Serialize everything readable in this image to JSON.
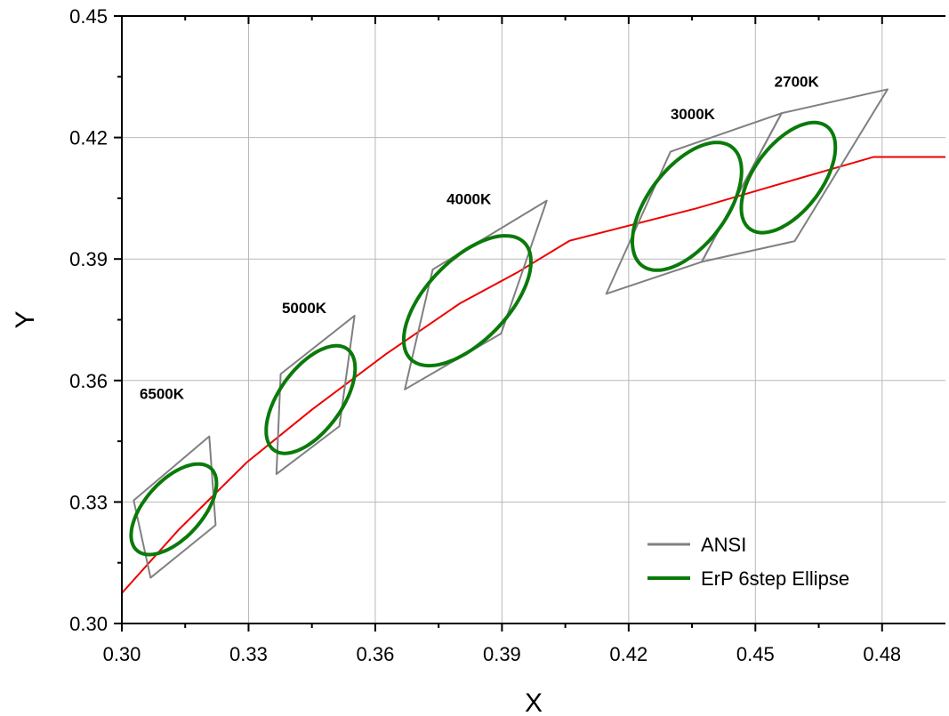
{
  "chart_data": {
    "type": "line",
    "xlabel": "X",
    "ylabel": "Y",
    "xlim": [
      0.3,
      0.495
    ],
    "ylim": [
      0.3,
      0.45
    ],
    "x_ticks": [
      "0.30",
      "0.33",
      "0.36",
      "0.39",
      "0.42",
      "0.45",
      "0.48"
    ],
    "y_ticks": [
      "0.30",
      "0.33",
      "0.36",
      "0.39",
      "0.42",
      "0.45"
    ],
    "x_tick_values": [
      0.3,
      0.33,
      0.36,
      0.39,
      0.42,
      0.45,
      0.48
    ],
    "y_tick_values": [
      0.3,
      0.33,
      0.36,
      0.39,
      0.42,
      0.45
    ],
    "grid": true,
    "legend_position": "bottom-right",
    "colors": {
      "ansi": "#808080",
      "ellipse": "#0a7a0a",
      "locus": "#ee0000",
      "grid": "#b8b8b8"
    },
    "legend": [
      {
        "label": "ANSI",
        "color": "#808080"
      },
      {
        "label": "ErP 6step Ellipse",
        "color": "#0a7a0a"
      }
    ],
    "planckian_locus": [
      [
        0.3,
        0.3075
      ],
      [
        0.3135,
        0.3232
      ],
      [
        0.3296,
        0.3398
      ],
      [
        0.345,
        0.3528
      ],
      [
        0.3625,
        0.3665
      ],
      [
        0.38,
        0.379
      ],
      [
        0.3935,
        0.3866
      ],
      [
        0.406,
        0.3945
      ],
      [
        0.436,
        0.4025
      ],
      [
        0.458,
        0.4092
      ],
      [
        0.478,
        0.4152
      ],
      [
        0.495,
        0.4152
      ]
    ],
    "ansi_quads": [
      {
        "cct": "6500K",
        "points": [
          [
            0.3028,
            0.3304
          ],
          [
            0.3207,
            0.3462
          ],
          [
            0.3222,
            0.3243
          ],
          [
            0.3068,
            0.3113
          ]
        ]
      },
      {
        "cct": "5000K",
        "points": [
          [
            0.3376,
            0.3616
          ],
          [
            0.3551,
            0.376
          ],
          [
            0.3515,
            0.3487
          ],
          [
            0.3366,
            0.3369
          ]
        ]
      },
      {
        "cct": "4000K",
        "points": [
          [
            0.3736,
            0.3874
          ],
          [
            0.4006,
            0.4044
          ],
          [
            0.3898,
            0.3716
          ],
          [
            0.367,
            0.3578
          ]
        ]
      },
      {
        "cct": "3000K",
        "points": [
          [
            0.4147,
            0.3814
          ],
          [
            0.4299,
            0.4165
          ],
          [
            0.4562,
            0.426
          ],
          [
            0.4373,
            0.3893
          ]
        ]
      },
      {
        "cct": "2700K",
        "points": [
          [
            0.4373,
            0.3893
          ],
          [
            0.4562,
            0.426
          ],
          [
            0.4813,
            0.4319
          ],
          [
            0.4593,
            0.3944
          ]
        ]
      }
    ],
    "ellipses": [
      {
        "cct": "6500K",
        "center": [
          0.3123,
          0.3282
        ],
        "a": 0.0134,
        "b": 0.0069,
        "angle_deg": 50
      },
      {
        "cct": "5000K",
        "center": [
          0.3447,
          0.3553
        ],
        "a": 0.0152,
        "b": 0.0075,
        "angle_deg": 56
      },
      {
        "cct": "4000K",
        "center": [
          0.3818,
          0.3797
        ],
        "a": 0.0197,
        "b": 0.0098,
        "angle_deg": 48
      },
      {
        "cct": "3000K",
        "center": [
          0.4338,
          0.403
        ],
        "a": 0.0181,
        "b": 0.0094,
        "angle_deg": 55
      },
      {
        "cct": "2700K",
        "center": [
          0.4578,
          0.4101
        ],
        "a": 0.0156,
        "b": 0.0081,
        "angle_deg": 55
      }
    ],
    "annotations": [
      {
        "text": "6500K",
        "x": 0.3042,
        "y": 0.3555
      },
      {
        "text": "5000K",
        "x": 0.3379,
        "y": 0.3767
      },
      {
        "text": "4000K",
        "x": 0.3769,
        "y": 0.4035
      },
      {
        "text": "3000K",
        "x": 0.4299,
        "y": 0.4245
      },
      {
        "text": "2700K",
        "x": 0.4545,
        "y": 0.4325
      }
    ]
  }
}
